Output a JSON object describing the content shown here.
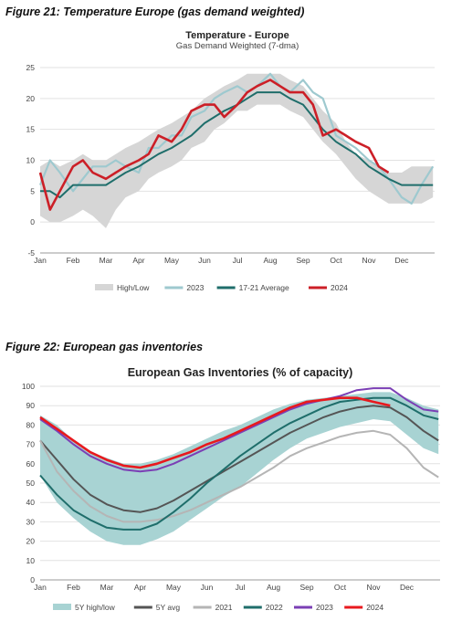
{
  "figures": {
    "fig21_caption": "Figure 21: Temperature Europe (gas demand weighted)",
    "fig22_caption": "Figure 22: European gas inventories"
  },
  "chart_data": [
    {
      "type": "line",
      "title": "Temperature - Europe",
      "subtitle": "Gas Demand Weighted (7-dma)",
      "xlabel": "",
      "ylabel": "",
      "ylim": [
        -5,
        25
      ],
      "yticks": [
        -5,
        0,
        5,
        10,
        15,
        20,
        25
      ],
      "categories": [
        "Jan",
        "Feb",
        "Mar",
        "Apr",
        "May",
        "Jun",
        "Jul",
        "Aug",
        "Sep",
        "Oct",
        "Nov",
        "Dec"
      ],
      "x": [
        0,
        0.3,
        0.6,
        1.0,
        1.3,
        1.6,
        2.0,
        2.3,
        2.6,
        3.0,
        3.3,
        3.6,
        4.0,
        4.3,
        4.6,
        5.0,
        5.3,
        5.6,
        6.0,
        6.3,
        6.6,
        7.0,
        7.3,
        7.6,
        8.0,
        8.3,
        8.6,
        9.0,
        9.3,
        9.6,
        10.0,
        10.3,
        10.6,
        11.0,
        11.3,
        11.6,
        11.95
      ],
      "band": {
        "name": "High/Low",
        "high": [
          9,
          10,
          9,
          10,
          11,
          10,
          10,
          11,
          12,
          13,
          14,
          15,
          16,
          17,
          18,
          20,
          21,
          22,
          23,
          24,
          24,
          24,
          24,
          23,
          22,
          20,
          18,
          16,
          13,
          11,
          10,
          9,
          8,
          8,
          9,
          9,
          9
        ],
        "low": [
          1,
          0,
          0,
          1,
          2,
          1,
          -1,
          2,
          4,
          5,
          7,
          8,
          9,
          10,
          12,
          13,
          15,
          16,
          18,
          18,
          19,
          19,
          19,
          18,
          17,
          15,
          13,
          11,
          9,
          7,
          5,
          4,
          3,
          3,
          3,
          3,
          4
        ]
      },
      "series": [
        {
          "name": "2023",
          "color": "#9ec9cf",
          "values": [
            6,
            10,
            8,
            5,
            7,
            9,
            9,
            10,
            9,
            8,
            12,
            12,
            14,
            14,
            17,
            18,
            20,
            21,
            22,
            21,
            22,
            24,
            22,
            21,
            23,
            21,
            20,
            14,
            13,
            12,
            10,
            9,
            7,
            4,
            3,
            6,
            9
          ]
        },
        {
          "name": "17-21 Average",
          "color": "#1f6e6b",
          "values": [
            5,
            5,
            4,
            6,
            6,
            6,
            6,
            7,
            8,
            9,
            10,
            11,
            12,
            13,
            14,
            16,
            17,
            18,
            19,
            20,
            21,
            21,
            21,
            20,
            19,
            17,
            15,
            13,
            12,
            11,
            9,
            8,
            7,
            6,
            6,
            6,
            6
          ]
        },
        {
          "name": "2024",
          "color": "#cc1f27",
          "values": [
            8,
            2,
            5,
            9,
            10,
            8,
            7,
            8,
            9,
            10,
            11,
            14,
            13,
            15,
            18,
            19,
            19,
            17,
            19,
            21,
            22,
            23,
            22,
            21,
            21,
            19,
            14,
            15,
            14,
            13,
            12,
            9,
            8,
            null,
            null,
            null,
            null
          ]
        }
      ],
      "legend": [
        "High/Low",
        "2023",
        "17-21 Average",
        "2024"
      ],
      "legend_position": "bottom"
    },
    {
      "type": "line",
      "title": "European Gas Inventories (% of capacity)",
      "xlabel": "",
      "ylabel": "",
      "ylim": [
        0,
        100
      ],
      "yticks": [
        0,
        10,
        20,
        30,
        40,
        50,
        60,
        70,
        80,
        90,
        100
      ],
      "categories": [
        "Jan",
        "Feb",
        "Mar",
        "Apr",
        "May",
        "Jun",
        "Jul",
        "Aug",
        "Sep",
        "Oct",
        "Nov",
        "Dec"
      ],
      "x": [
        0,
        0.5,
        1.0,
        1.5,
        2.0,
        2.5,
        3.0,
        3.5,
        4.0,
        4.5,
        5.0,
        5.5,
        6.0,
        6.5,
        7.0,
        7.5,
        8.0,
        8.5,
        9.0,
        9.5,
        10.0,
        10.5,
        11.0,
        11.5,
        11.95
      ],
      "band": {
        "name": "5Y high/low",
        "high": [
          85,
          80,
          72,
          66,
          63,
          60,
          60,
          62,
          65,
          69,
          73,
          77,
          80,
          84,
          88,
          91,
          93,
          94,
          95,
          96,
          97,
          97,
          94,
          90,
          88
        ],
        "low": [
          54,
          40,
          32,
          25,
          20,
          18,
          18,
          21,
          25,
          31,
          37,
          43,
          48,
          55,
          62,
          68,
          73,
          76,
          79,
          81,
          83,
          82,
          75,
          68,
          65
        ]
      },
      "series": [
        {
          "name": "5Y avg",
          "color": "#555555",
          "values": [
            72,
            62,
            52,
            44,
            39,
            36,
            35,
            37,
            41,
            46,
            51,
            56,
            61,
            66,
            71,
            76,
            80,
            84,
            87,
            89,
            90,
            89,
            84,
            77,
            72
          ]
        },
        {
          "name": "2021",
          "color": "#b5b5b5",
          "values": [
            72,
            56,
            46,
            38,
            33,
            30,
            30,
            31,
            33,
            36,
            40,
            44,
            48,
            53,
            58,
            64,
            68,
            71,
            74,
            76,
            77,
            75,
            68,
            58,
            53
          ]
        },
        {
          "name": "2022",
          "color": "#1f6e6b",
          "values": [
            54,
            44,
            36,
            31,
            27,
            26,
            26,
            29,
            35,
            42,
            50,
            57,
            64,
            70,
            76,
            81,
            85,
            89,
            92,
            93,
            94,
            94,
            90,
            85,
            83
          ]
        },
        {
          "name": "2023",
          "color": "#7b3fb5",
          "values": [
            83,
            77,
            70,
            64,
            60,
            57,
            56,
            57,
            60,
            64,
            68,
            72,
            76,
            80,
            84,
            88,
            91,
            93,
            95,
            98,
            99,
            99,
            93,
            88,
            87
          ]
        },
        {
          "name": "2024",
          "color": "#e8191e",
          "values": [
            84,
            78,
            72,
            66,
            62,
            59,
            58,
            60,
            63,
            66,
            70,
            73,
            77,
            81,
            85,
            89,
            92,
            93,
            94,
            94,
            92,
            90,
            null,
            null,
            null
          ]
        }
      ],
      "legend": [
        "5Y high/low",
        "5Y avg",
        "2021",
        "2022",
        "2023",
        "2024"
      ],
      "legend_position": "bottom"
    }
  ]
}
